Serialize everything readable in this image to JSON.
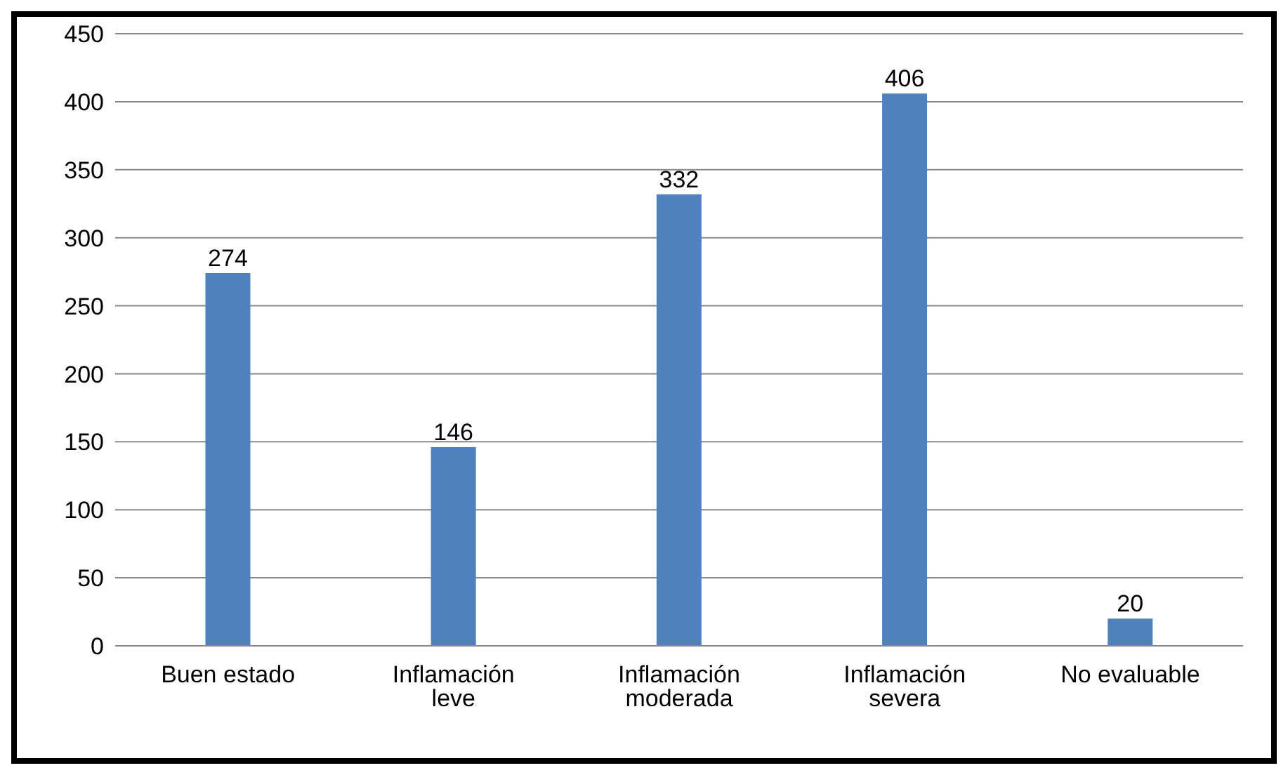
{
  "chart_data": {
    "type": "bar",
    "categories": [
      "Buen estado",
      "Inflamación leve",
      "Inflamación moderada",
      "Inflamación severa",
      "No evaluable"
    ],
    "values": [
      274,
      146,
      332,
      406,
      20
    ],
    "color": "#4f81bd",
    "ylim": [
      0,
      450
    ],
    "yticks": [
      0,
      50,
      100,
      150,
      200,
      250,
      300,
      350,
      400,
      450
    ],
    "grid": "y",
    "data_labels": true
  }
}
